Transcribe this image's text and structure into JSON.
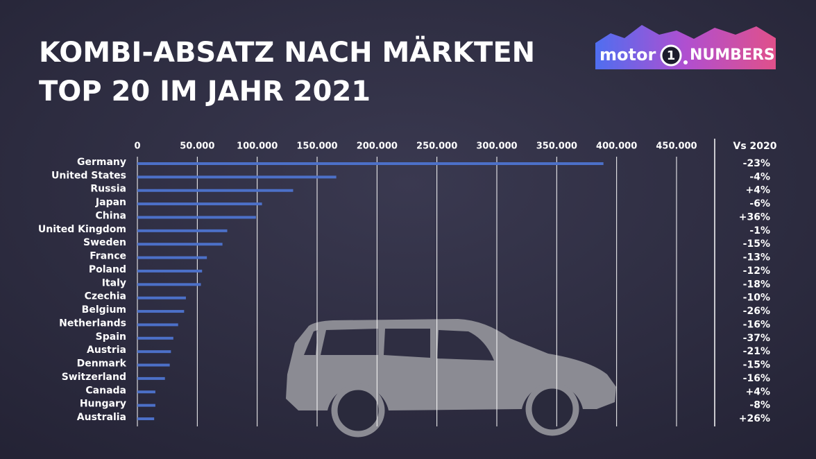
{
  "chart_data": {
    "type": "bar",
    "orientation": "horizontal",
    "title": "KOMBI-ABSATZ NACH MÄRKTEN",
    "subtitle": "TOP 20 IM JAHR 2021",
    "logo": {
      "prefix": "motor",
      "digit": "1",
      "suffix": "NUMBERS"
    },
    "categories": [
      "Germany",
      "United States",
      "Russia",
      "Japan",
      "China",
      "United Kingdom",
      "Sweden",
      "France",
      "Poland",
      "Italy",
      "Czechia",
      "Belgium",
      "Netherlands",
      "Spain",
      "Austria",
      "Denmark",
      "Switzerland",
      "Canada",
      "Hungary",
      "Australia"
    ],
    "values": [
      389000,
      166000,
      130000,
      104000,
      99000,
      75000,
      71000,
      58000,
      54000,
      53000,
      40500,
      39000,
      34000,
      30000,
      28000,
      27000,
      23000,
      15000,
      15000,
      14000
    ],
    "color": "#4c70c8",
    "xlim": [
      0,
      450000
    ],
    "xticks": [
      0,
      {
        "value": 50000,
        "label": "50.000"
      },
      {
        "value": 100000,
        "label": "100.000"
      },
      {
        "value": 150000,
        "label": "150.000"
      },
      {
        "value": 200000,
        "label": "200.000"
      },
      {
        "value": 250000,
        "label": "250.000"
      },
      {
        "value": 300000,
        "label": "300.000"
      },
      {
        "value": 350000,
        "label": "350.000"
      },
      {
        "value": 400000,
        "label": "400.000"
      },
      {
        "value": 450000,
        "label": "450.000"
      }
    ],
    "grid": true,
    "change": {
      "name": "Vs 2020",
      "values": [
        -23,
        -4,
        4,
        -6,
        36,
        -1,
        -15,
        -13,
        -12,
        -18,
        -10,
        -26,
        -16,
        -37,
        -21,
        -15,
        -16,
        4,
        -8,
        26
      ],
      "value_labels": [
        "-23%",
        "-4%",
        "+4%",
        "-6%",
        "+36%",
        "-1%",
        "-15%",
        "-13%",
        "-12%",
        "-18%",
        "-10%",
        "-26%",
        "-16%",
        "-37%",
        "-21%",
        "-15%",
        "-16%",
        "+4%",
        "-8%",
        "+26%"
      ]
    }
  }
}
